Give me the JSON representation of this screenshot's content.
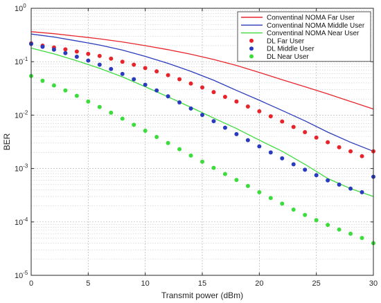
{
  "chart_data": {
    "type": "line",
    "title": "",
    "xlabel": "Transmit power (dBm)",
    "ylabel": "BER",
    "xlim": [
      0,
      30
    ],
    "ylim": [
      1e-05,
      1
    ],
    "yscale": "log",
    "grid": true,
    "legend_position": "top-right",
    "x_ticks": [
      "0",
      "5",
      "10",
      "15",
      "20",
      "25",
      "30"
    ],
    "y_ticks": [
      {
        "base": "10",
        "exp": "0"
      },
      {
        "base": "10",
        "exp": "-1"
      },
      {
        "base": "10",
        "exp": "-2"
      },
      {
        "base": "10",
        "exp": "-3"
      },
      {
        "base": "10",
        "exp": "-4"
      },
      {
        "base": "10",
        "exp": "-5"
      }
    ],
    "series": [
      {
        "name": "Conventinal NOMA Far User",
        "style": "line",
        "color": "#e8242b",
        "x": [
          0,
          2,
          4,
          6,
          8,
          10,
          12,
          14,
          16,
          18,
          20,
          22,
          24,
          26,
          28,
          30
        ],
        "y": [
          0.365,
          0.335,
          0.3,
          0.268,
          0.235,
          0.2,
          0.168,
          0.138,
          0.11,
          0.085,
          0.063,
          0.046,
          0.034,
          0.025,
          0.018,
          0.013
        ]
      },
      {
        "name": "Conventinal NOMA Middle User",
        "style": "line",
        "color": "#2a3bbd",
        "x": [
          0,
          2,
          4,
          6,
          8,
          10,
          12,
          14,
          16,
          18,
          20,
          22,
          24,
          26,
          28,
          30
        ],
        "y": [
          0.33,
          0.29,
          0.245,
          0.205,
          0.165,
          0.126,
          0.093,
          0.066,
          0.045,
          0.029,
          0.019,
          0.0122,
          0.0078,
          0.0048,
          0.0031,
          0.0021
        ]
      },
      {
        "name": "Conventinal NOMA Near User",
        "style": "line",
        "color": "#3ddc3d",
        "x": [
          0,
          2,
          4,
          6,
          8,
          10,
          12,
          14,
          16,
          18,
          20,
          22,
          24,
          26,
          28,
          30
        ],
        "y": [
          0.18,
          0.14,
          0.104,
          0.075,
          0.052,
          0.034,
          0.022,
          0.014,
          0.0088,
          0.0056,
          0.0034,
          0.0021,
          0.0012,
          0.00065,
          0.00042,
          0.0003
        ]
      },
      {
        "name": "DL Far User",
        "style": "markers",
        "color": "#e8242b",
        "x": [
          0,
          1,
          2,
          3,
          4,
          5,
          6,
          7,
          8,
          9,
          10,
          11,
          12,
          13,
          14,
          15,
          16,
          17,
          18,
          19,
          20,
          21,
          22,
          23,
          24,
          25,
          26,
          27,
          28,
          29,
          30
        ],
        "y": [
          0.22,
          0.2,
          0.185,
          0.17,
          0.155,
          0.14,
          0.128,
          0.114,
          0.1,
          0.088,
          0.076,
          0.066,
          0.056,
          0.047,
          0.039,
          0.033,
          0.027,
          0.022,
          0.018,
          0.0145,
          0.0118,
          0.0095,
          0.0076,
          0.006,
          0.0048,
          0.0038,
          0.0031,
          0.0025,
          0.0021,
          0.0017,
          0.0021
        ]
      },
      {
        "name": "DL Middle User",
        "style": "markers",
        "color": "#2a3bbd",
        "x": [
          0,
          1,
          2,
          3,
          4,
          5,
          6,
          7,
          8,
          9,
          10,
          11,
          12,
          13,
          14,
          15,
          16,
          17,
          18,
          19,
          20,
          21,
          22,
          23,
          24,
          25,
          26,
          27,
          28,
          29,
          30
        ],
        "y": [
          0.215,
          0.19,
          0.168,
          0.145,
          0.124,
          0.105,
          0.088,
          0.073,
          0.059,
          0.047,
          0.037,
          0.029,
          0.0225,
          0.0173,
          0.0133,
          0.0101,
          0.0077,
          0.0058,
          0.0044,
          0.0034,
          0.0026,
          0.002,
          0.00155,
          0.0012,
          0.00095,
          0.00075,
          0.0006,
          0.0005,
          0.00042,
          0.00036,
          0.0007
        ]
      },
      {
        "name": "DL Near User",
        "style": "markers",
        "color": "#3ddc3d",
        "x": [
          0,
          1,
          2,
          3,
          4,
          5,
          6,
          7,
          8,
          9,
          10,
          11,
          12,
          13,
          14,
          15,
          16,
          17,
          18,
          19,
          20,
          21,
          22,
          23,
          24,
          25,
          26,
          27,
          28,
          29,
          30
        ],
        "y": [
          0.054,
          0.044,
          0.036,
          0.029,
          0.023,
          0.018,
          0.0142,
          0.0111,
          0.0086,
          0.0066,
          0.0051,
          0.0039,
          0.003,
          0.0023,
          0.00175,
          0.00134,
          0.00103,
          0.00079,
          0.00061,
          0.00047,
          0.00036,
          0.00028,
          0.00022,
          0.00017,
          0.000135,
          0.000108,
          8.8e-05,
          7.2e-05,
          6e-05,
          5e-05,
          4e-05
        ]
      }
    ]
  }
}
